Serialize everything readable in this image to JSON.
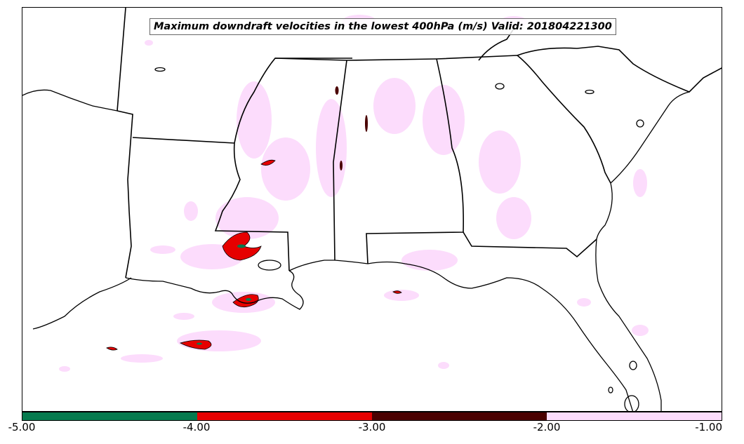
{
  "map": {
    "title": "Maximum downdraft velocities in the lowest 400hPa (m/s) Valid: 201804221300"
  },
  "legend": {
    "segments": [
      {
        "from": "-5.00",
        "to": "-4.00",
        "color": "#067a4e"
      },
      {
        "from": "-4.00",
        "to": "-3.00",
        "color": "#e60000"
      },
      {
        "from": "-3.00",
        "to": "-2.00",
        "color": "#4a0000"
      },
      {
        "from": "-2.00",
        "to": "-1.00",
        "color": "#fcdcfc"
      }
    ],
    "tick_labels": [
      "-5.00",
      "-4.00",
      "-3.00",
      "-2.00",
      "-1.00"
    ]
  }
}
